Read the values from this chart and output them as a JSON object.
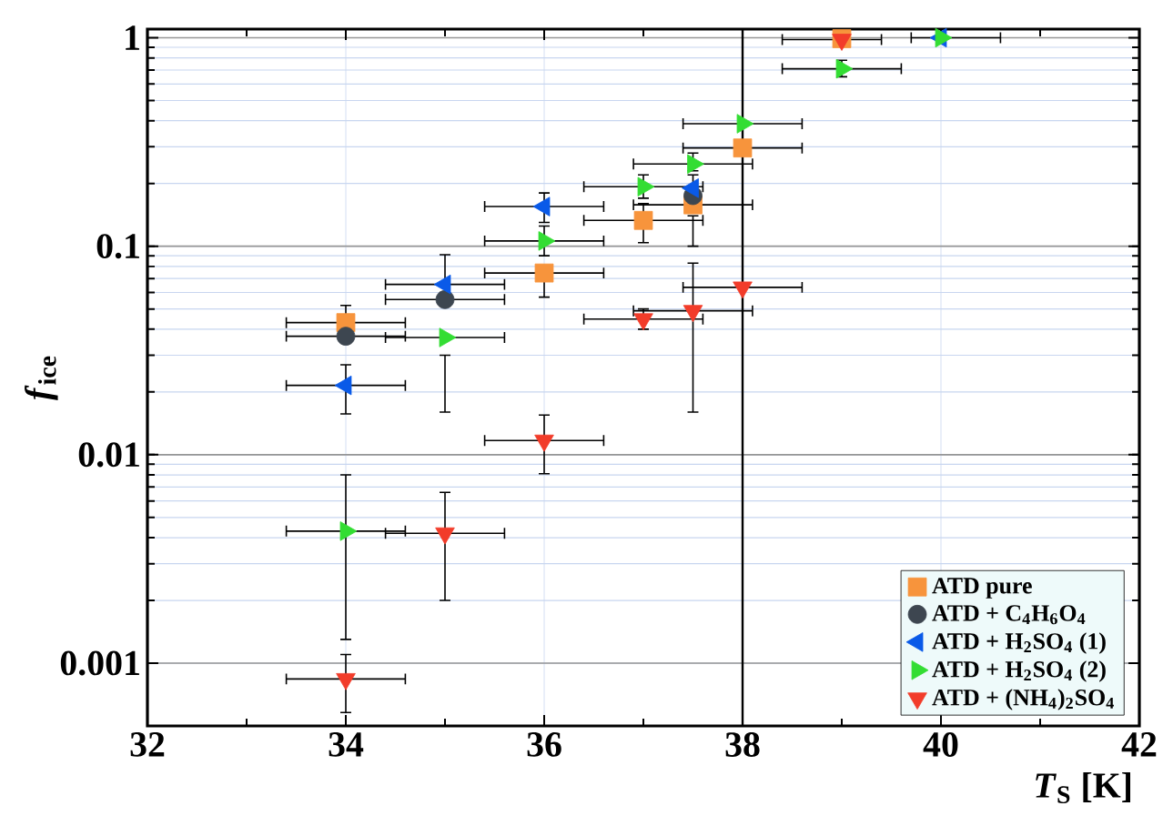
{
  "chart_data": {
    "type": "scatter",
    "xlabel": "*T*$_{S}$ [K]",
    "ylabel": "*f*$_{ice}$",
    "xlim": [
      32,
      42
    ],
    "xticks": [
      32,
      34,
      36,
      38,
      40,
      42
    ],
    "ylim": [
      0.0005,
      1.1
    ],
    "yticks": [
      0.001,
      0.01,
      0.1,
      1
    ],
    "log": "y",
    "grid": true,
    "legend": "bottom right",
    "ref_lines": [
      {
        "axis": "x",
        "value": 38,
        "color": "#000000"
      }
    ],
    "series": [
      {
        "name": "ATD pure",
        "color": "#f7943c",
        "marker": "square",
        "x": [
          34,
          36,
          37,
          37.5,
          38,
          39
        ],
        "values": [
          0.043,
          0.0744,
          0.133,
          0.158,
          0.296,
          0.99
        ],
        "errors": [
          [
            0.04,
            0.052
          ],
          [
            0.057,
            0.08
          ],
          [
            0.104,
            0.16
          ],
          [
            0.1,
            0.14
          ],
          null,
          null
        ],
        "xerrors": [
          0.6,
          0.6,
          0.6,
          0.6,
          0.6,
          null
        ]
      },
      {
        "name": "ATD + C$_{4}$H$_{6}$O$_{4}$",
        "color": "#3d4650",
        "marker": "circle",
        "x": [
          34,
          35,
          37.5
        ],
        "values": [
          0.037,
          0.0555,
          0.175
        ],
        "errors": [
          null,
          null,
          null
        ],
        "xerrors": [
          0.6,
          0.6,
          null
        ]
      },
      {
        "name": "ATD + H$_{2}$SO$_{4}$ (1)",
        "color": "#0a5ae8",
        "marker": "triangle-left",
        "x": [
          34,
          35,
          36,
          37.5,
          40
        ],
        "values": [
          0.0215,
          0.0656,
          0.155,
          0.19,
          1.0
        ],
        "errors": [
          [
            0.0157,
            0.027
          ],
          [
            0.06,
            0.091
          ],
          [
            0.13,
            0.18
          ],
          [
            0.17,
            0.22
          ],
          null
        ],
        "xerrors": [
          0.6,
          0.6,
          0.6,
          null,
          [
            39.7,
            40.6
          ]
        ]
      },
      {
        "name": "ATD + H$_{2}$SO$_{4}$ (2)",
        "color": "#33dd33",
        "marker": "triangle-right",
        "x": [
          34,
          35,
          36,
          37,
          37.5,
          38,
          39,
          40
        ],
        "values": [
          0.0043,
          0.0365,
          0.106,
          0.193,
          0.248,
          0.387,
          0.71,
          1.0
        ],
        "errors": [
          [
            0.0013,
            0.008
          ],
          [
            0.016,
            0.03
          ],
          [
            0.09,
            0.125
          ],
          [
            0.17,
            0.22
          ],
          [
            0.23,
            0.28
          ],
          null,
          [
            0.65,
            0.78
          ],
          null
        ],
        "xerrors": [
          0.6,
          0.6,
          0.6,
          0.6,
          0.6,
          0.6,
          0.6,
          null
        ]
      },
      {
        "name": "ATD + (NH$_{4}$)$_{2}$SO$_{4}$",
        "color": "#f23c2a",
        "marker": "triangle-down",
        "x": [
          34,
          35,
          36,
          37,
          37.5,
          38,
          39
        ],
        "values": [
          0.00084,
          0.0042,
          0.0117,
          0.0447,
          0.049,
          0.0635,
          0.98
        ],
        "errors": [
          [
            0.00058,
            0.0011
          ],
          [
            0.002,
            0.0066
          ],
          [
            0.0081,
            0.0155
          ],
          [
            0.04,
            0.05
          ],
          [
            0.016,
            0.083
          ],
          null,
          null
        ],
        "xerrors": [
          0.6,
          0.6,
          0.6,
          0.6,
          0.6,
          0.6,
          [
            38.4,
            39.4
          ]
        ]
      }
    ]
  }
}
